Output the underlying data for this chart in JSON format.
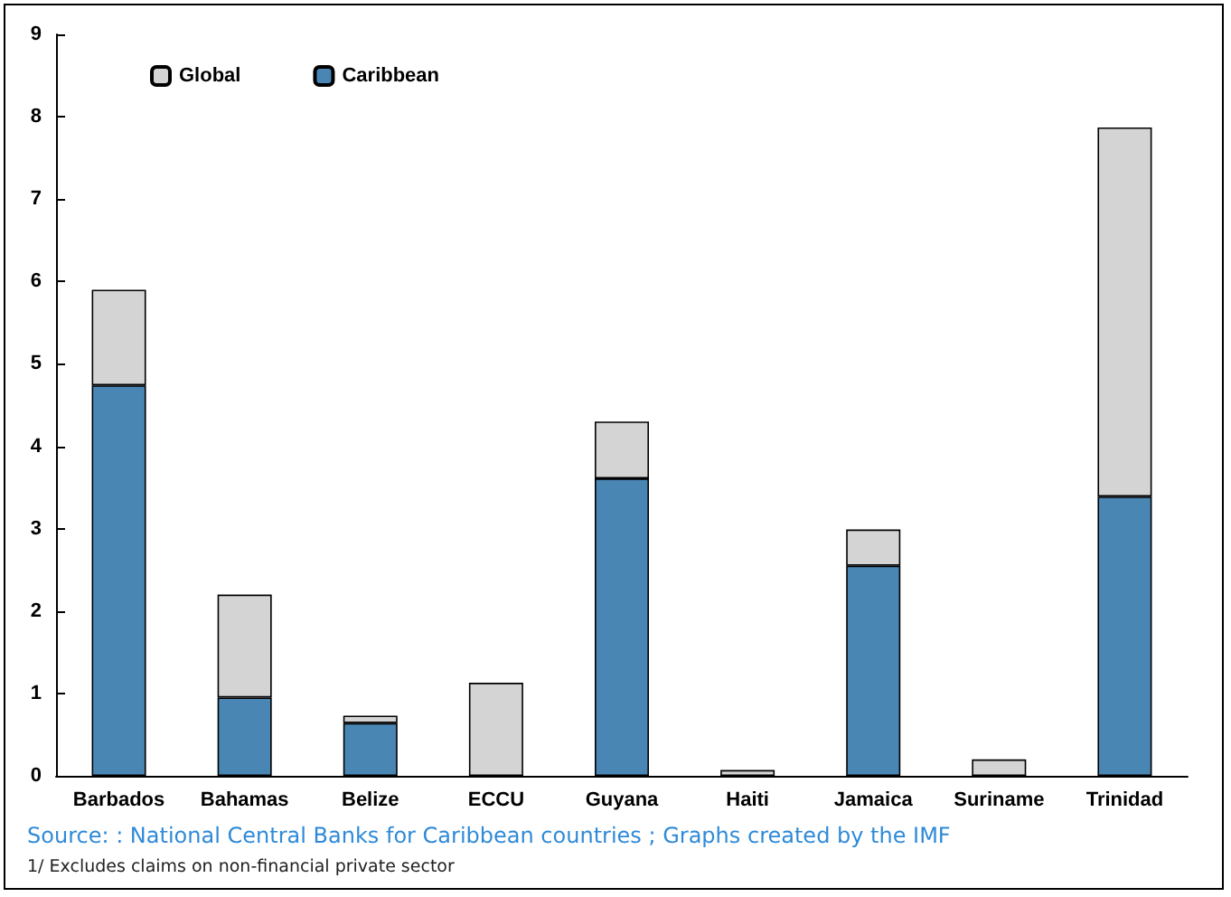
{
  "chart_data": {
    "type": "bar",
    "stacked": true,
    "categories": [
      "Barbados",
      "Bahamas",
      "Belize",
      "ECCU",
      "Guyana",
      "Haiti",
      "Jamaica",
      "Suriname",
      "Trinidad"
    ],
    "series": [
      {
        "name": "Caribbean",
        "color": "#4a86b4",
        "values": [
          4.74,
          0.95,
          0.64,
          0,
          3.61,
          0,
          2.55,
          0,
          3.39
        ]
      },
      {
        "name": "Global",
        "color": "#d4d4d4",
        "values": [
          1.16,
          1.25,
          0.09,
          1.13,
          0.69,
          0.07,
          0.44,
          0.2,
          4.48
        ]
      }
    ],
    "ylim": [
      0,
      9
    ],
    "yticks": [
      0,
      1,
      2,
      3,
      4,
      5,
      6,
      7,
      8,
      9
    ],
    "grid": false,
    "legend": "top left",
    "annotations": [
      "Source: : National Central Banks for Caribbean countries ; Graphs created by the IMF",
      "1/ Excludes claims on non-financial private sector"
    ]
  }
}
